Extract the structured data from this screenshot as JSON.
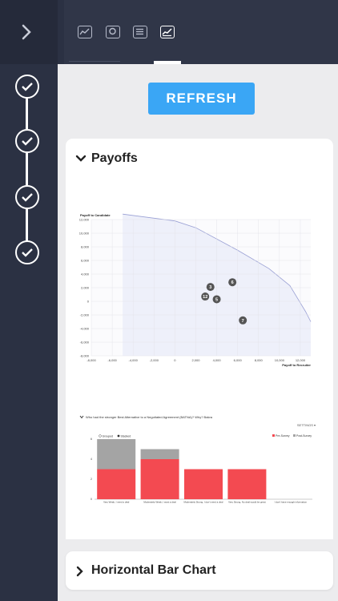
{
  "refresh_label": "REFRESH",
  "tabs": [
    {
      "icon": "line-chart-icon",
      "active": false
    },
    {
      "icon": "badge-icon",
      "active": false
    },
    {
      "icon": "list-icon",
      "active": false
    },
    {
      "icon": "area-chart-icon",
      "active": true
    }
  ],
  "steps": [
    {
      "icon": "check-icon",
      "done": true
    },
    {
      "icon": "check-icon",
      "done": true
    },
    {
      "icon": "check-icon",
      "done": true
    },
    {
      "icon": "check-icon",
      "done": true
    }
  ],
  "payoffs_card": {
    "title": "Payoffs",
    "chart_data": {
      "type": "scatter",
      "ylabel": "Payoff to Candidate",
      "xlabel": "Payoff to Recruiter",
      "xlim": [
        -8000,
        13000
      ],
      "ylim": [
        -8000,
        12000
      ],
      "xticks": [
        "-8,000",
        "-6,000",
        "-4,000",
        "-2,000",
        "0",
        "2,000",
        "4,000",
        "6,000",
        "8,000",
        "10,000",
        "12,000"
      ],
      "yticks": [
        "12,000",
        "10,000",
        "8,000",
        "6,000",
        "4,000",
        "2,000",
        "0",
        "-2,000",
        "-4,000",
        "-6,000",
        "-8,000"
      ],
      "points": [
        {
          "label": "3",
          "x": 3400,
          "y": 2100
        },
        {
          "label": "12",
          "x": 2900,
          "y": 700
        },
        {
          "label": "5",
          "x": 4000,
          "y": 300
        },
        {
          "label": "6",
          "x": 5500,
          "y": 2800
        },
        {
          "label": "7",
          "x": 6500,
          "y": -2800
        }
      ],
      "frontier": [
        [
          -5000,
          12800
        ],
        [
          0,
          11800
        ],
        [
          2000,
          10800
        ],
        [
          6000,
          7500
        ],
        [
          9000,
          4800
        ],
        [
          11000,
          2300
        ],
        [
          12500,
          -1500
        ],
        [
          13000,
          -3000
        ]
      ]
    },
    "sub_chart": {
      "title": "Who had the stronger Best Alternative to a Negotiated Agreement (BATNA)? Why? Bakra",
      "settings_label": "SETTINGS",
      "toggle_labels": [
        "Grouped",
        "Stacked"
      ],
      "legend": [
        "Pre-Survey",
        "Post-Survey"
      ],
      "colors": {
        "pre": "#f34a51",
        "post": "#a4a4a4"
      },
      "chart_data": {
        "type": "bar",
        "categories": [
          "Very Weak, I need a deal",
          "Moderately Weak, I want a deal",
          "Moderately Strong, I don't need a deal",
          "Very Strong, No deal would be great",
          "I don't have enough information"
        ],
        "series": [
          {
            "name": "Pre-Survey",
            "values": [
              3,
              4,
              3,
              3,
              0
            ]
          },
          {
            "name": "Post-Survey",
            "values": [
              3,
              1,
              0,
              0,
              0
            ]
          }
        ],
        "ylim": [
          0,
          6
        ],
        "yticks": [
          "6",
          "4",
          "2",
          "0"
        ]
      }
    }
  },
  "horizontal_card": {
    "title": "Horizontal Bar Chart"
  }
}
